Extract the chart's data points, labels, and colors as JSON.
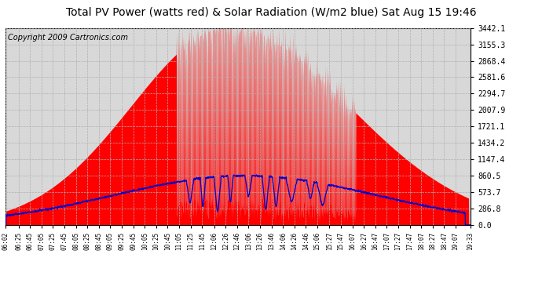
{
  "title": "Total PV Power (watts red) & Solar Radiation (W/m2 blue) Sat Aug 15 19:46",
  "copyright": "Copyright 2009 Cartronics.com",
  "yticks": [
    0.0,
    286.8,
    573.7,
    860.5,
    1147.4,
    1434.2,
    1721.1,
    2007.9,
    2294.7,
    2581.6,
    2868.4,
    3155.3,
    3442.1
  ],
  "ylim": [
    0,
    3442.1
  ],
  "xtick_labels": [
    "06:02",
    "06:25",
    "06:45",
    "07:05",
    "07:25",
    "07:45",
    "08:05",
    "08:25",
    "08:45",
    "09:05",
    "09:25",
    "09:45",
    "10:05",
    "10:25",
    "10:45",
    "11:05",
    "11:25",
    "11:45",
    "12:06",
    "12:26",
    "12:46",
    "13:06",
    "13:26",
    "13:46",
    "14:06",
    "14:26",
    "14:46",
    "15:06",
    "15:27",
    "15:47",
    "16:07",
    "16:27",
    "16:47",
    "17:07",
    "17:27",
    "17:47",
    "18:07",
    "18:27",
    "18:47",
    "19:07",
    "19:33"
  ],
  "bg_color": "#ffffff",
  "plot_bg_color": "#d8d8d8",
  "grid_color": "#b0b0b0",
  "red_color": "#ff0000",
  "blue_color": "#0000cc",
  "title_fontsize": 10,
  "copyright_fontsize": 7
}
